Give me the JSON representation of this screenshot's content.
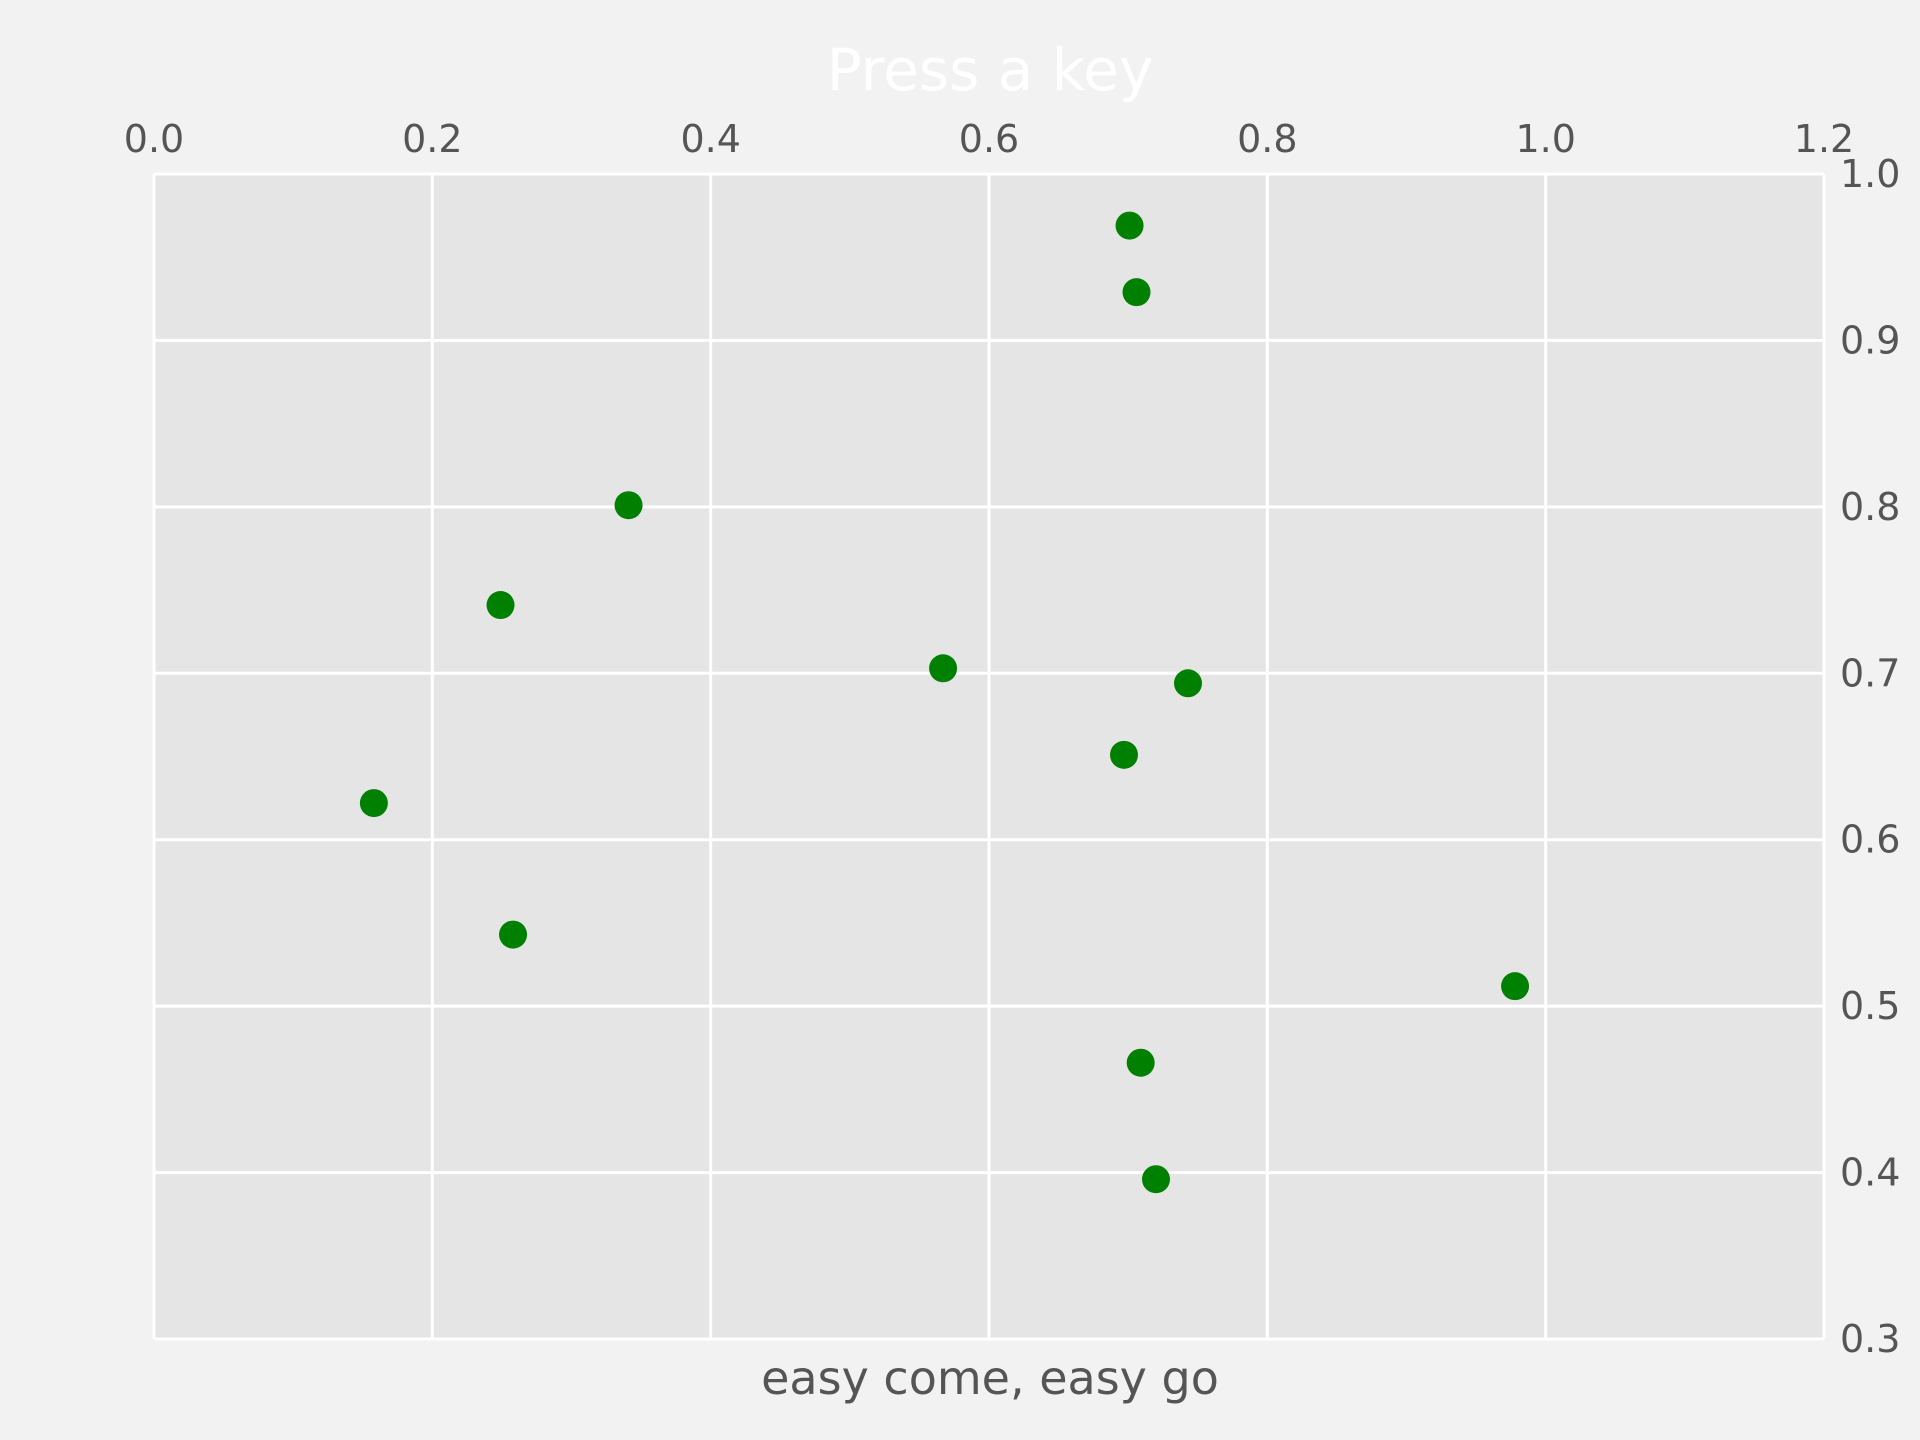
{
  "chart_data": {
    "type": "scatter",
    "title": "Press a key",
    "xlabel": "easy come, easy go",
    "ylabel": "",
    "xlim": [
      0.0,
      1.2
    ],
    "ylim": [
      0.3,
      1.0
    ],
    "x_axis_position": "top",
    "y_axis_position": "right",
    "x_ticks": [
      "0.0",
      "0.2",
      "0.4",
      "0.6",
      "0.8",
      "1.0",
      "1.2"
    ],
    "x_tick_values": [
      0.0,
      0.2,
      0.4,
      0.6,
      0.8,
      1.0,
      1.2
    ],
    "y_ticks": [
      "0.3",
      "0.4",
      "0.5",
      "0.6",
      "0.7",
      "0.8",
      "0.9",
      "1.0"
    ],
    "y_tick_values": [
      0.3,
      0.4,
      0.5,
      0.6,
      0.7,
      0.8,
      0.9,
      1.0
    ],
    "grid": true,
    "series": [
      {
        "color": "#008000",
        "points": [
          {
            "x": 0.701,
            "y": 0.969
          },
          {
            "x": 0.706,
            "y": 0.929
          },
          {
            "x": 0.341,
            "y": 0.801
          },
          {
            "x": 0.249,
            "y": 0.741
          },
          {
            "x": 0.567,
            "y": 0.703
          },
          {
            "x": 0.743,
            "y": 0.694
          },
          {
            "x": 0.697,
            "y": 0.651
          },
          {
            "x": 0.158,
            "y": 0.622
          },
          {
            "x": 0.258,
            "y": 0.543
          },
          {
            "x": 0.978,
            "y": 0.512
          },
          {
            "x": 0.709,
            "y": 0.466
          },
          {
            "x": 0.72,
            "y": 0.396
          }
        ]
      }
    ],
    "colors": {
      "page_background": "#f2f2f2",
      "plot_background": "#e5e5e5",
      "grid": "#ffffff",
      "tick_text": "#555555",
      "title_text": "#ffffff"
    }
  }
}
